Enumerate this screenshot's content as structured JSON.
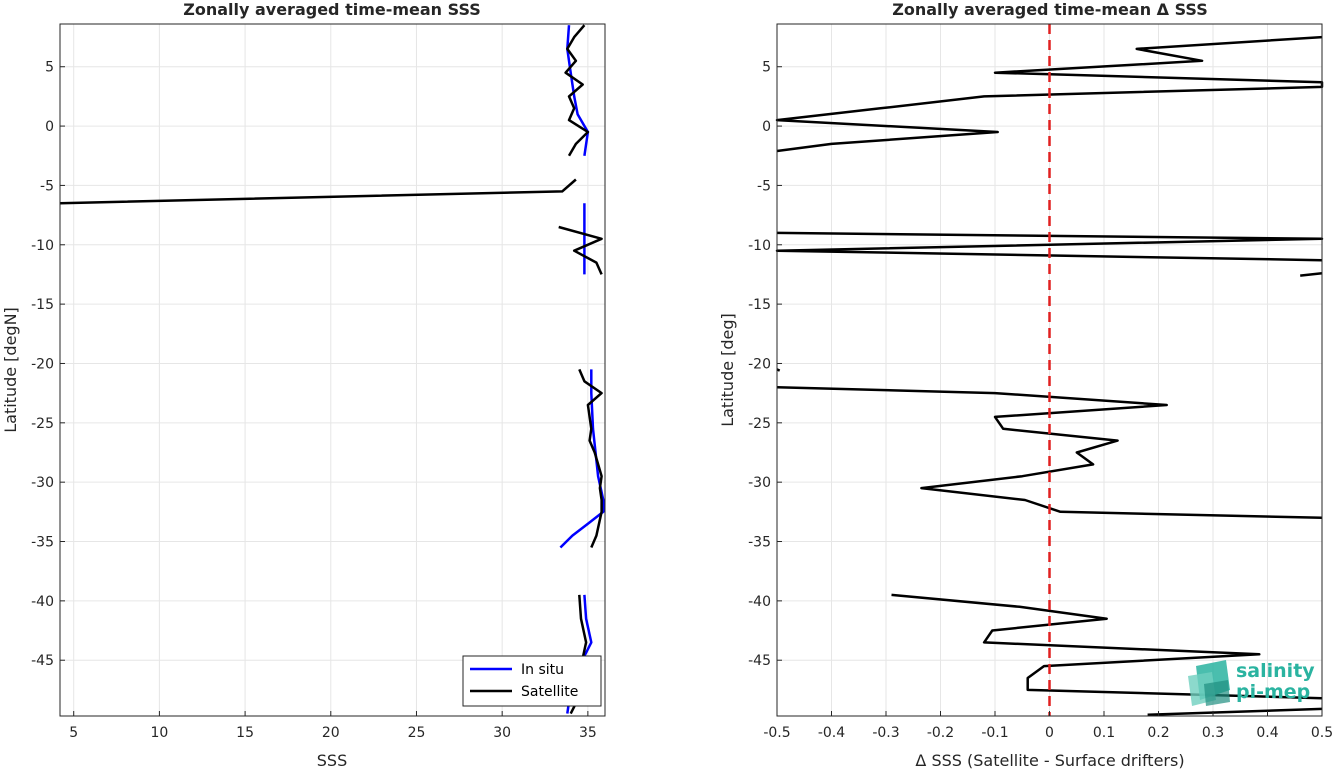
{
  "chart_data": [
    {
      "type": "line",
      "title": "Zonally averaged time-mean SSS",
      "xlabel": "SSS",
      "ylabel": "Latitude [degN]",
      "xlim": [
        4.2,
        36
      ],
      "ylim": [
        -49.7,
        8.6
      ],
      "xticks": [
        5,
        10,
        15,
        20,
        25,
        30,
        35
      ],
      "yticks": [
        5,
        0,
        -5,
        -10,
        -15,
        -20,
        -25,
        -30,
        -35,
        -40,
        -45
      ],
      "grid": true,
      "legend_position": "bottom-right",
      "legend": [
        "In situ",
        "Satellite"
      ],
      "series": [
        {
          "name": "In situ",
          "color": "#0000ff",
          "segments": [
            [
              [
                33.9,
                8.5
              ],
              [
                33.8,
                6.5
              ],
              [
                34.0,
                4.5
              ],
              [
                34.2,
                2.5
              ],
              [
                34.4,
                1.0
              ],
              [
                35.0,
                -0.5
              ],
              [
                34.8,
                -2.5
              ]
            ],
            [
              [
                34.8,
                -6.5
              ],
              [
                34.8,
                -9.5
              ],
              [
                34.8,
                -12.5
              ]
            ],
            [
              [
                35.2,
                -20.5
              ],
              [
                35.2,
                -22.5
              ],
              [
                35.3,
                -25.5
              ],
              [
                35.6,
                -29.5
              ],
              [
                35.9,
                -31.5
              ],
              [
                35.9,
                -32.5
              ],
              [
                35.0,
                -33.5
              ],
              [
                34.1,
                -34.5
              ],
              [
                33.4,
                -35.5
              ]
            ],
            [
              [
                34.8,
                -39.5
              ],
              [
                34.9,
                -41.5
              ],
              [
                35.2,
                -43.5
              ],
              [
                34.5,
                -45.5
              ],
              [
                34.0,
                -47.5
              ],
              [
                33.8,
                -49.5
              ]
            ]
          ]
        },
        {
          "name": "Satellite",
          "color": "#000000",
          "segments": [
            [
              [
                34.8,
                8.5
              ],
              [
                34.2,
                7.5
              ],
              [
                33.8,
                6.5
              ],
              [
                34.3,
                5.5
              ],
              [
                33.7,
                4.5
              ],
              [
                34.7,
                3.5
              ],
              [
                33.9,
                2.5
              ],
              [
                34.2,
                1.5
              ],
              [
                33.9,
                0.5
              ],
              [
                35.0,
                -0.5
              ],
              [
                34.3,
                -1.5
              ],
              [
                33.9,
                -2.5
              ]
            ],
            [
              [
                34.3,
                -4.5
              ],
              [
                33.5,
                -5.5
              ],
              [
                4.2,
                -6.5
              ]
            ],
            [
              [
                33.3,
                -8.5
              ],
              [
                35.8,
                -9.5
              ],
              [
                34.2,
                -10.5
              ],
              [
                35.5,
                -11.5
              ],
              [
                35.8,
                -12.5
              ]
            ],
            [
              [
                34.5,
                -20.5
              ],
              [
                34.8,
                -21.5
              ],
              [
                35.8,
                -22.5
              ],
              [
                35.0,
                -23.5
              ],
              [
                35.2,
                -25.5
              ],
              [
                35.1,
                -26.5
              ],
              [
                35.4,
                -27.5
              ],
              [
                35.8,
                -29.5
              ],
              [
                35.7,
                -30.5
              ],
              [
                35.8,
                -31.5
              ],
              [
                35.8,
                -32.5
              ],
              [
                35.5,
                -34.5
              ],
              [
                35.2,
                -35.5
              ]
            ],
            [
              [
                34.5,
                -39.5
              ],
              [
                34.6,
                -41.5
              ],
              [
                34.9,
                -43.5
              ],
              [
                34.6,
                -45.5
              ],
              [
                34.7,
                -47.5
              ],
              [
                34.0,
                -49.5
              ]
            ]
          ]
        }
      ]
    },
    {
      "type": "line",
      "title": "Zonally averaged time-mean Δ SSS",
      "xlabel": "Δ SSS (Satellite - Surface drifters)",
      "ylabel": "Latitude [deg]",
      "xlim": [
        -0.5,
        0.5
      ],
      "ylim": [
        -49.7,
        8.6
      ],
      "xticks": [
        -0.5,
        -0.4,
        -0.3,
        -0.2,
        -0.1,
        0,
        0.1,
        0.2,
        0.3,
        0.4,
        0.5
      ],
      "xticklabels": [
        "-0.5",
        "-0.4",
        "-0.3",
        "-0.2",
        "-0.1",
        "0",
        "0.1",
        "0.2",
        "0.3",
        "0.4",
        "0.5"
      ],
      "yticks": [
        5,
        0,
        -5,
        -10,
        -15,
        -20,
        -25,
        -30,
        -35,
        -40,
        -45
      ],
      "grid": true,
      "reference_line": {
        "x": 0,
        "color": "#e02020",
        "style": "dashed"
      },
      "series": [
        {
          "color": "#000000",
          "segments": [
            [
              [
                0.5,
                7.5
              ],
              [
                0.16,
                6.5
              ],
              [
                0.28,
                5.5
              ],
              [
                -0.1,
                4.5
              ],
              [
                0.5,
                3.7
              ],
              [
                0.5,
                3.3
              ],
              [
                -0.12,
                2.5
              ],
              [
                -0.31,
                1.5
              ],
              [
                -0.5,
                0.5
              ],
              [
                -0.095,
                -0.5
              ],
              [
                -0.4,
                -1.5
              ],
              [
                -0.5,
                -2.1
              ]
            ],
            [
              [
                -0.5,
                -9.0
              ],
              [
                0.5,
                -9.5
              ],
              [
                -0.5,
                -10.5
              ],
              [
                0.5,
                -11.3
              ]
            ],
            [
              [
                0.46,
                -12.6
              ],
              [
                0.5,
                -12.4
              ]
            ],
            [
              [
                -0.5,
                -20.5
              ],
              [
                -0.495,
                -20.6
              ]
            ],
            [
              [
                -0.5,
                -22.0
              ],
              [
                -0.1,
                -22.5
              ],
              [
                0.215,
                -23.5
              ],
              [
                -0.1,
                -24.5
              ],
              [
                -0.085,
                -25.5
              ],
              [
                0.125,
                -26.5
              ],
              [
                0.05,
                -27.5
              ],
              [
                0.08,
                -28.5
              ],
              [
                -0.05,
                -29.5
              ],
              [
                -0.235,
                -30.5
              ],
              [
                -0.045,
                -31.5
              ],
              [
                0.02,
                -32.5
              ],
              [
                0.5,
                -33.0
              ]
            ],
            [
              [
                -0.29,
                -39.5
              ],
              [
                -0.055,
                -40.5
              ],
              [
                0.105,
                -41.5
              ],
              [
                -0.105,
                -42.5
              ],
              [
                -0.12,
                -43.5
              ],
              [
                0.385,
                -44.5
              ],
              [
                -0.01,
                -45.5
              ],
              [
                -0.04,
                -46.5
              ],
              [
                -0.04,
                -47.5
              ],
              [
                0.5,
                -48.2
              ]
            ],
            [
              [
                0.18,
                -49.6
              ],
              [
                0.5,
                -49.1
              ]
            ]
          ]
        }
      ]
    }
  ],
  "logo": {
    "line1": "salinity",
    "line2": "pi-mep"
  }
}
